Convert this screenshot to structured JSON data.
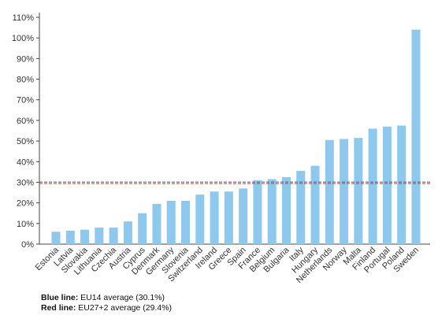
{
  "chart_data": {
    "type": "bar",
    "categories": [
      "Estonia",
      "Latvia",
      "Slovakia",
      "Lithuania",
      "Czechia",
      "Austria",
      "Cyprus",
      "Denmark",
      "Germany",
      "Slovenia",
      "Switzerland",
      "Ireland",
      "Greece",
      "Spain",
      "France",
      "Belgium",
      "Bulgaria",
      "Italy",
      "Hungary",
      "Netherlands",
      "Norway",
      "Malta",
      "Finland",
      "Portugal",
      "Poland",
      "Sweden"
    ],
    "values": [
      6,
      6.5,
      7,
      8,
      8,
      11,
      15,
      19.5,
      21,
      21,
      24,
      25.5,
      25.5,
      27,
      31,
      31.5,
      32.5,
      35.5,
      38,
      50.5,
      51,
      51.5,
      56,
      57,
      57.5,
      104
    ],
    "ylim": [
      0,
      110
    ],
    "yticks": [
      0,
      10,
      20,
      30,
      40,
      50,
      60,
      70,
      80,
      90,
      100,
      110
    ],
    "ytick_suffix": "%",
    "bar_color": "#8ec8ec",
    "reference_lines": [
      {
        "value": 30.1,
        "color": "#2f6fd6",
        "style": "dashed"
      },
      {
        "value": 29.4,
        "color": "#e0402a",
        "style": "dashed"
      }
    ],
    "grid": false
  },
  "notes": {
    "blue_label": "Blue line:",
    "blue_text": " EU14 average (30.1%)",
    "red_label": "Red line:",
    "red_text": " EU27+2 average (29.4%)"
  }
}
